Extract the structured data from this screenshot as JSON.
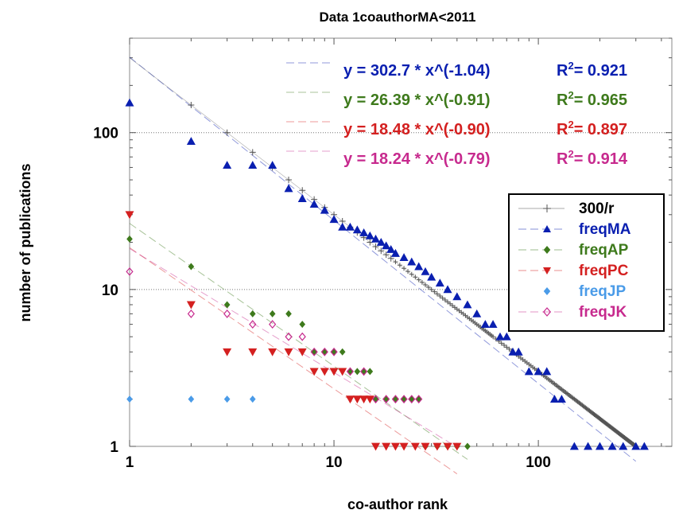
{
  "chart_data": {
    "type": "scatter",
    "title": "Data 1coauthorMA<2011",
    "xlabel": "co-author rank",
    "ylabel": "number of publications",
    "xscale": "log",
    "yscale": "log",
    "xlim": [
      1,
      450
    ],
    "ylim": [
      1,
      400
    ],
    "x_ticks": [
      1,
      10,
      100
    ],
    "x_tick_labels": [
      "1",
      "10",
      "100"
    ],
    "y_ticks": [
      1,
      10,
      100
    ],
    "y_tick_labels": [
      "1",
      "10",
      "100"
    ],
    "grid": "dotted horizontal lines at 10 and 100",
    "legend_position": "center-right",
    "reference": {
      "name": "300/r",
      "color": "#555555",
      "marker": "plus",
      "coefficient": 300,
      "x_range": [
        1,
        300
      ]
    },
    "series": [
      {
        "name": "freqMA",
        "color": "#0a1fb0",
        "marker": "triangle-up",
        "points": [
          [
            1,
            155
          ],
          [
            2,
            88
          ],
          [
            3,
            62
          ],
          [
            4,
            62
          ],
          [
            5,
            62
          ],
          [
            6,
            44
          ],
          [
            7,
            38
          ],
          [
            8,
            35
          ],
          [
            9,
            32
          ],
          [
            10,
            28
          ],
          [
            11,
            25
          ],
          [
            12,
            25
          ],
          [
            13,
            24
          ],
          [
            14,
            23
          ],
          [
            15,
            22
          ],
          [
            16,
            21
          ],
          [
            17,
            20
          ],
          [
            18,
            19
          ],
          [
            19,
            18
          ],
          [
            20,
            17
          ],
          [
            22,
            16
          ],
          [
            24,
            15
          ],
          [
            26,
            14
          ],
          [
            28,
            13
          ],
          [
            30,
            12
          ],
          [
            33,
            11
          ],
          [
            36,
            10
          ],
          [
            40,
            9
          ],
          [
            45,
            8
          ],
          [
            50,
            7
          ],
          [
            55,
            6
          ],
          [
            60,
            6
          ],
          [
            65,
            5
          ],
          [
            70,
            5
          ],
          [
            75,
            4
          ],
          [
            80,
            4
          ],
          [
            90,
            3
          ],
          [
            100,
            3
          ],
          [
            110,
            3
          ],
          [
            120,
            2
          ],
          [
            130,
            2
          ],
          [
            150,
            1
          ],
          [
            175,
            1
          ],
          [
            200,
            1
          ],
          [
            230,
            1
          ],
          [
            260,
            1
          ],
          [
            300,
            1
          ],
          [
            330,
            1
          ]
        ],
        "fit": {
          "label": "y = 302.7 * x^(-1.04)",
          "r2_label": "R",
          "r2_value": "= 0.921",
          "a": 302.7,
          "b": -1.04,
          "x_range": [
            1,
            300
          ]
        }
      },
      {
        "name": "freqAP",
        "color": "#3e7a1c",
        "marker": "diamond",
        "points": [
          [
            1,
            21
          ],
          [
            2,
            14
          ],
          [
            3,
            8
          ],
          [
            4,
            7
          ],
          [
            5,
            7
          ],
          [
            6,
            7
          ],
          [
            7,
            6
          ],
          [
            8,
            4
          ],
          [
            9,
            4
          ],
          [
            10,
            4
          ],
          [
            11,
            4
          ],
          [
            12,
            3
          ],
          [
            13,
            3
          ],
          [
            14,
            3
          ],
          [
            15,
            3
          ],
          [
            16,
            2
          ],
          [
            18,
            2
          ],
          [
            20,
            2
          ],
          [
            22,
            2
          ],
          [
            24,
            2
          ],
          [
            26,
            2
          ],
          [
            28,
            1
          ],
          [
            32,
            1
          ],
          [
            36,
            1
          ],
          [
            40,
            1
          ],
          [
            45,
            1
          ]
        ],
        "fit": {
          "label": "y = 26.39 * x^(-0.91)",
          "r2_label": "R",
          "r2_value": "= 0.965",
          "a": 26.39,
          "b": -0.91,
          "x_range": [
            1,
            45
          ]
        }
      },
      {
        "name": "freqPC",
        "color": "#d42020",
        "marker": "triangle-down",
        "points": [
          [
            1,
            30
          ],
          [
            2,
            8
          ],
          [
            3,
            4
          ],
          [
            4,
            4
          ],
          [
            5,
            4
          ],
          [
            6,
            4
          ],
          [
            7,
            4
          ],
          [
            8,
            3
          ],
          [
            9,
            3
          ],
          [
            10,
            3
          ],
          [
            11,
            3
          ],
          [
            12,
            2
          ],
          [
            13,
            2
          ],
          [
            14,
            2
          ],
          [
            15,
            2
          ],
          [
            16,
            1
          ],
          [
            18,
            1
          ],
          [
            20,
            1
          ],
          [
            22,
            1
          ],
          [
            25,
            1
          ],
          [
            28,
            1
          ],
          [
            32,
            1
          ],
          [
            36,
            1
          ],
          [
            40,
            1
          ]
        ],
        "fit": {
          "label": "y = 18.48 * x^(-0.90)",
          "r2_label": "R",
          "r2_value": "= 0.897",
          "a": 18.48,
          "b": -0.9,
          "x_range": [
            1,
            40
          ]
        }
      },
      {
        "name": "freqJP",
        "color": "#4a9be8",
        "marker": "diamond",
        "points": [
          [
            1,
            2
          ],
          [
            2,
            2
          ],
          [
            3,
            2
          ],
          [
            4,
            2
          ]
        ]
      },
      {
        "name": "freqJK",
        "color": "#c72a8e",
        "marker": "diamond-open",
        "points": [
          [
            1,
            13
          ],
          [
            2,
            7
          ],
          [
            3,
            7
          ],
          [
            4,
            6
          ],
          [
            5,
            6
          ],
          [
            6,
            5
          ],
          [
            7,
            5
          ],
          [
            8,
            4
          ],
          [
            9,
            4
          ],
          [
            10,
            4
          ],
          [
            12,
            3
          ],
          [
            14,
            3
          ],
          [
            16,
            2
          ],
          [
            18,
            2
          ],
          [
            20,
            2
          ],
          [
            22,
            2
          ],
          [
            24,
            2
          ],
          [
            26,
            2
          ]
        ],
        "fit": {
          "label": "y = 18.24 * x^(-0.79)",
          "r2_label": "R",
          "r2_value": "= 0.914",
          "a": 18.24,
          "b": -0.79,
          "x_range": [
            1,
            40
          ]
        }
      }
    ]
  }
}
